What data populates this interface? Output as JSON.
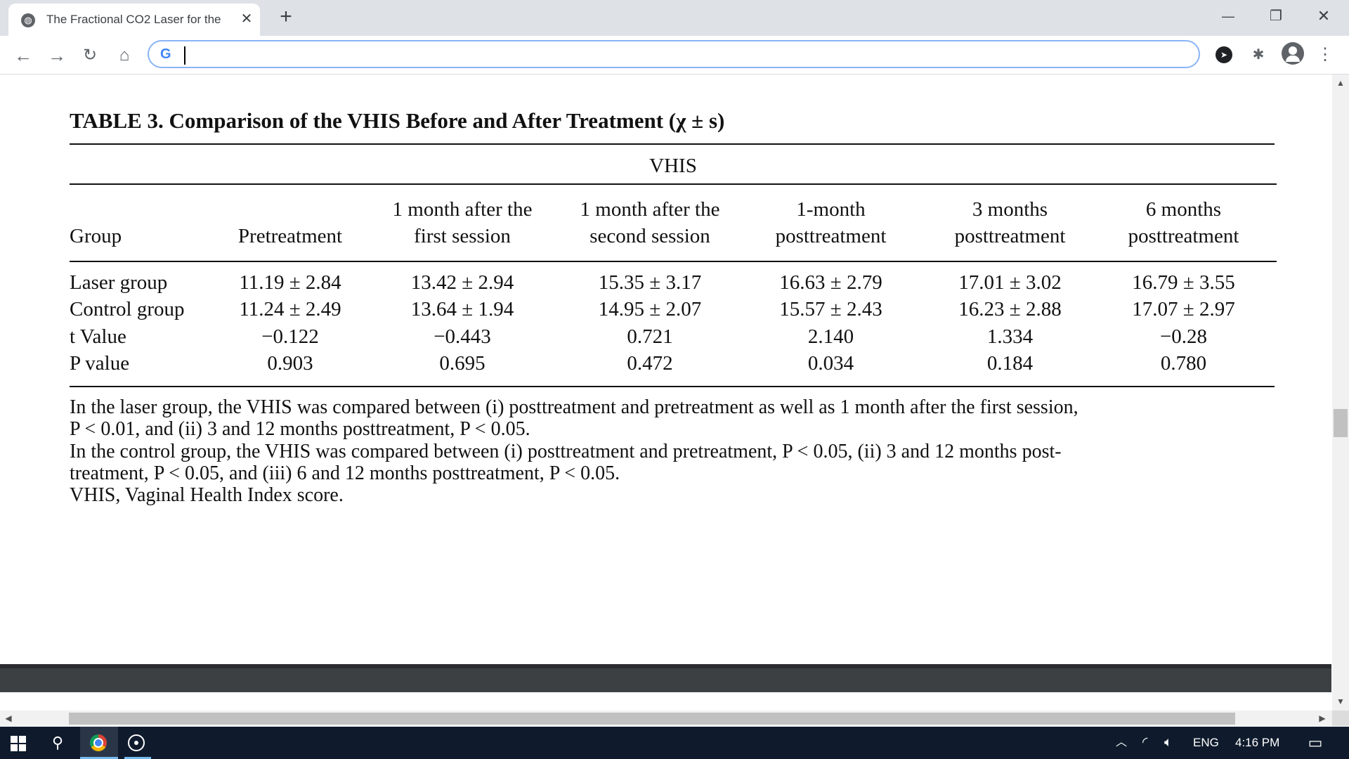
{
  "browser": {
    "tab_title": "The Fractional CO2 Laser for the",
    "tab_close": "✕",
    "new_tab": "+",
    "omnibox_value": "",
    "window_controls": {
      "minimize": "—",
      "restore": "❐",
      "close": "✕"
    }
  },
  "article": {
    "table_title": "TABLE 3. Comparison of the VHIS Before and After Treatment (χ ± s)",
    "spanning_header": "VHIS",
    "columns": [
      "Group",
      "Pretreatment",
      "1 month after the first session",
      "1 month after the second session",
      "1-month posttreatment",
      "3 months posttreatment",
      "6 months posttreatment"
    ],
    "column_lines": [
      [
        "",
        "Group"
      ],
      [
        "",
        "Pretreatment"
      ],
      [
        "1 month after the",
        "first session"
      ],
      [
        "1 month after the",
        "second session"
      ],
      [
        "1-month",
        "posttreatment"
      ],
      [
        "3 months",
        "posttreatment"
      ],
      [
        "6 months",
        "posttreatment"
      ]
    ],
    "rows": [
      {
        "label": "Laser group",
        "values": [
          "11.19 ± 2.84",
          "13.42 ± 2.94",
          "15.35 ± 3.17",
          "16.63 ± 2.79",
          "17.01 ± 3.02",
          "16.79 ± 3.55"
        ]
      },
      {
        "label": "Control group",
        "values": [
          "11.24 ± 2.49",
          "13.64 ± 1.94",
          "14.95 ± 2.07",
          "15.57 ± 2.43",
          "16.23 ± 2.88",
          "17.07 ± 2.97"
        ]
      },
      {
        "label": "t Value",
        "values": [
          "−0.122",
          "−0.443",
          "0.721",
          "2.140",
          "1.334",
          "−0.28"
        ]
      },
      {
        "label": "P value",
        "values": [
          "0.903",
          "0.695",
          "0.472",
          "0.034",
          "0.184",
          "0.780"
        ]
      }
    ],
    "footnotes": [
      "In the laser group, the VHIS was compared between (i) posttreatment and pretreatment as well as 1 month after the first session,",
      "P < 0.01, and (ii) 3 and 12 months posttreatment, P < 0.05.",
      "In the control group, the VHIS was compared between (i) posttreatment and pretreatment, P < 0.05, (ii) 3 and 12 months post-",
      "treatment, P < 0.05, and (iii) 6 and 12 months posttreatment, P < 0.05.",
      "VHIS, Vaginal Health Index score."
    ]
  },
  "taskbar": {
    "language": "ENG",
    "time": "4:16 PM"
  }
}
